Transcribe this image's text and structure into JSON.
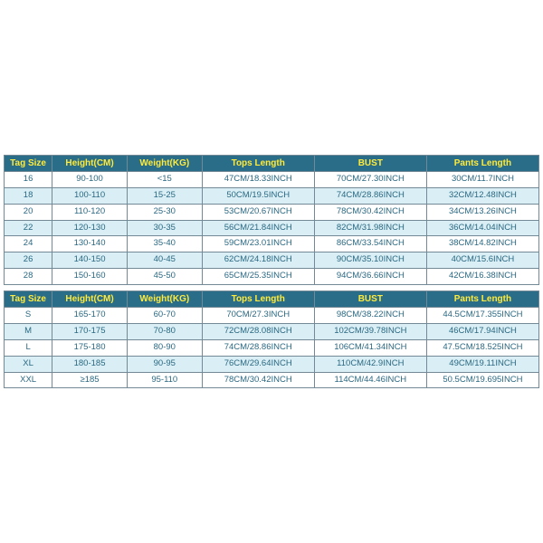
{
  "tables": {
    "columns": [
      "Tag Size",
      "Height(CM)",
      "Weight(KG)",
      "Tops Length",
      "BUST",
      "Pants Length"
    ],
    "header_bg": "#2a6d88",
    "header_fg": "#ffeb3b",
    "row_odd_bg": "#ffffff",
    "row_even_bg": "#d9eff5",
    "cell_fg": "#2b6882",
    "border_color": "#738a96",
    "font_size_pt": 9.5,
    "header_font_size_pt": 10,
    "kids": [
      [
        "16",
        "90-100",
        "<15",
        "47CM/18.33INCH",
        "70CM/27.30INCH",
        "30CM/11.7INCH"
      ],
      [
        "18",
        "100-110",
        "15-25",
        "50CM/19.5INCH",
        "74CM/28.86INCH",
        "32CM/12.48INCH"
      ],
      [
        "20",
        "110-120",
        "25-30",
        "53CM/20.67INCH",
        "78CM/30.42INCH",
        "34CM/13.26INCH"
      ],
      [
        "22",
        "120-130",
        "30-35",
        "56CM/21.84INCH",
        "82CM/31.98INCH",
        "36CM/14.04INCH"
      ],
      [
        "24",
        "130-140",
        "35-40",
        "59CM/23.01INCH",
        "86CM/33.54INCH",
        "38CM/14.82INCH"
      ],
      [
        "26",
        "140-150",
        "40-45",
        "62CM/24.18INCH",
        "90CM/35.10INCH",
        "40CM/15.6INCH"
      ],
      [
        "28",
        "150-160",
        "45-50",
        "65CM/25.35INCH",
        "94CM/36.66INCH",
        "42CM/16.38INCH"
      ]
    ],
    "adults": [
      [
        "S",
        "165-170",
        "60-70",
        "70CM/27.3INCH",
        "98CM/38.22INCH",
        "44.5CM/17.355INCH"
      ],
      [
        "M",
        "170-175",
        "70-80",
        "72CM/28.08INCH",
        "102CM/39.78INCH",
        "46CM/17.94INCH"
      ],
      [
        "L",
        "175-180",
        "80-90",
        "74CM/28.86INCH",
        "106CM/41.34INCH",
        "47.5CM/18.525INCH"
      ],
      [
        "XL",
        "180-185",
        "90-95",
        "76CM/29.64INCH",
        "110CM/42.9INCH",
        "49CM/19.11INCH"
      ],
      [
        "XXL",
        "≥185",
        "95-110",
        "78CM/30.42INCH",
        "114CM/44.46INCH",
        "50.5CM/19.695INCH"
      ]
    ],
    "col_widths_pct": [
      9,
      14,
      14,
      21,
      21,
      21
    ]
  }
}
